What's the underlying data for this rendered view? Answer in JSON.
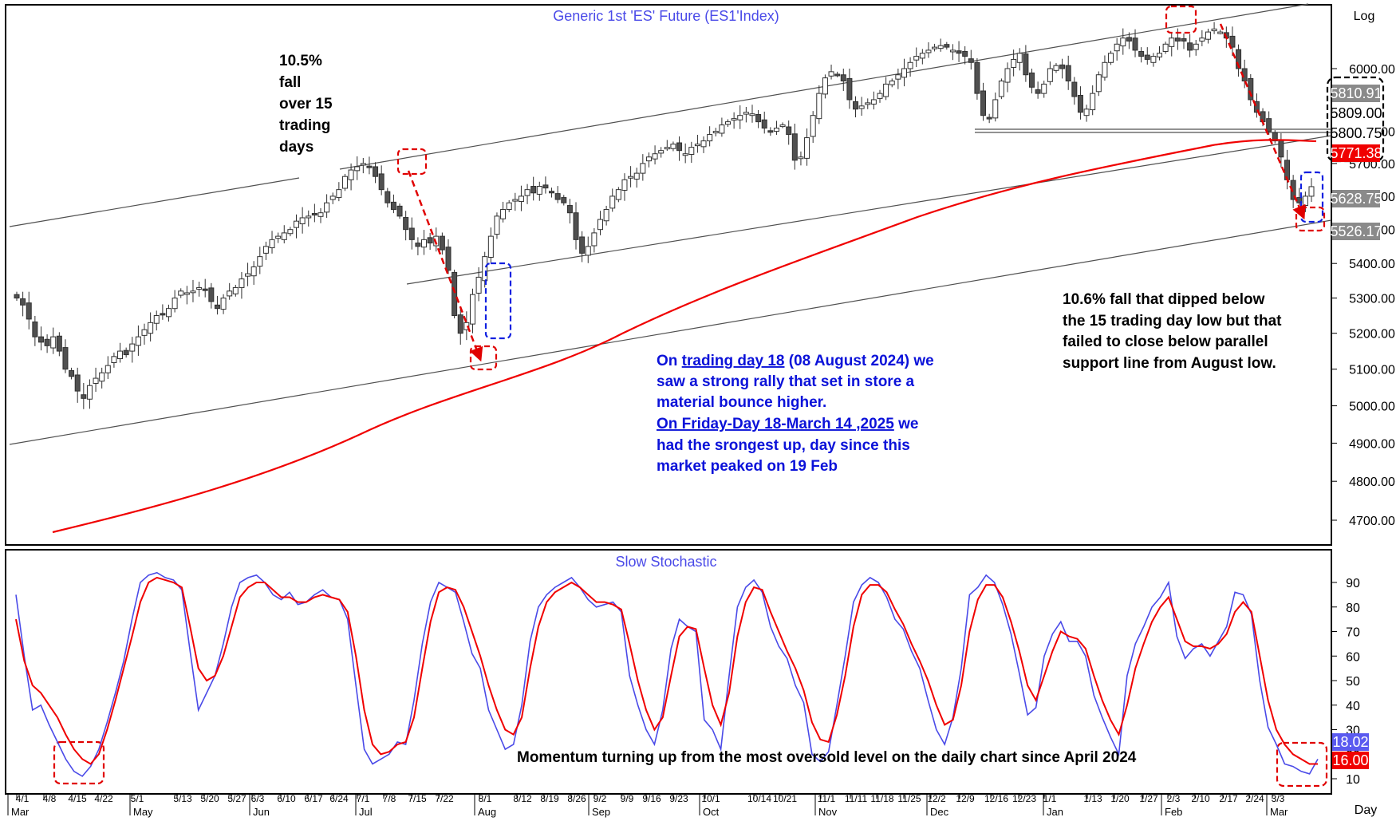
{
  "chart_data": [
    {
      "type": "candlestick",
      "title": "Generic  1st  'ES'  Future  (ES1'Index)",
      "scale_label": "Log",
      "ylim": [
        4650,
        6600
      ],
      "y_ticks": [
        4700,
        4800,
        4900,
        5000,
        5100,
        5200,
        5300,
        5400,
        5500,
        5600,
        5700,
        5800,
        6000
      ],
      "y_tick_labels": [
        "4700.00",
        "4800.00",
        "4900.00",
        "5000.00",
        "5100.00",
        "5200.00",
        "5300.00",
        "5400.00",
        "5500.00",
        "5600.00",
        "5700.00",
        "5800.00",
        "6000.00"
      ],
      "price_boxes": [
        {
          "label": "5810.91",
          "value": 5810.91,
          "style": "grey"
        },
        {
          "label": "5809.00",
          "value": 5809.0,
          "style": "white"
        },
        {
          "label": "5800.75",
          "value": 5800.75,
          "style": "white"
        },
        {
          "label": "5771.38",
          "value": 5771.38,
          "style": "red"
        },
        {
          "label": "5628.75",
          "value": 5628.75,
          "style": "grey"
        },
        {
          "label": "5526.17",
          "value": 5526.17,
          "style": "grey"
        }
      ],
      "series": [
        {
          "name": "",
          "kind": "candles",
          "closes": [
            5300,
            5280,
            5240,
            5190,
            5175,
            5165,
            5190,
            5150,
            5100,
            5080,
            5040,
            5020,
            5055,
            5075,
            5090,
            5110,
            5135,
            5150,
            5140,
            5170,
            5190,
            5210,
            5230,
            5250,
            5255,
            5270,
            5300,
            5320,
            5315,
            5320,
            5330,
            5325,
            5290,
            5270,
            5300,
            5320,
            5330,
            5355,
            5370,
            5390,
            5420,
            5450,
            5470,
            5480,
            5490,
            5500,
            5525,
            5535,
            5540,
            5545,
            5550,
            5580,
            5600,
            5620,
            5660,
            5680,
            5690,
            5700,
            5690,
            5660,
            5620,
            5580,
            5560,
            5540,
            5500,
            5470,
            5450,
            5470,
            5460,
            5480,
            5440,
            5380,
            5250,
            5200,
            5230,
            5310,
            5360,
            5420,
            5480,
            5540,
            5560,
            5580,
            5590,
            5600,
            5620,
            5610,
            5630,
            5625,
            5610,
            5590,
            5580,
            5550,
            5470,
            5430,
            5450,
            5490,
            5530,
            5560,
            5600,
            5620,
            5650,
            5660,
            5670,
            5700,
            5720,
            5730,
            5740,
            5750,
            5760,
            5740,
            5730,
            5750,
            5760,
            5770,
            5790,
            5800,
            5820,
            5830,
            5840,
            5850,
            5860,
            5855,
            5830,
            5810,
            5800,
            5810,
            5820,
            5790,
            5710,
            5720,
            5780,
            5850,
            5920,
            5970,
            5990,
            5980,
            5960,
            5900,
            5870,
            5880,
            5890,
            5900,
            5920,
            5950,
            5960,
            5980,
            6000,
            6020,
            6040,
            6050,
            6060,
            6070,
            6075,
            6070,
            6060,
            6050,
            6040,
            6020,
            5920,
            5850,
            5840,
            5900,
            5960,
            6000,
            6030,
            6050,
            5980,
            5940,
            5920,
            5950,
            6000,
            6010,
            6000,
            5960,
            5910,
            5860,
            5870,
            5920,
            5980,
            6020,
            6050,
            6080,
            6100,
            6090,
            6060,
            6040,
            6030,
            6040,
            6050,
            6080,
            6100,
            6090,
            6090,
            6060,
            6080,
            6100,
            6120,
            6130,
            6120,
            6100,
            6070,
            6000,
            5960,
            5900,
            5860,
            5830,
            5800,
            5770,
            5720,
            5650,
            5590,
            5580,
            5600,
            5629
          ]
        }
      ]
    },
    {
      "type": "line",
      "title": "Slow  Stochastic",
      "ylim": [
        0,
        100
      ],
      "y_ticks": [
        10,
        20,
        30,
        40,
        50,
        60,
        70,
        80,
        90
      ],
      "y_tick_labels": [
        "10",
        "20",
        "30",
        "40",
        "50",
        "60",
        "70",
        "80",
        "90"
      ],
      "value_boxes": [
        {
          "label": "18.02",
          "value": 18.02,
          "color": "#5a5af0"
        },
        {
          "label": "16.00",
          "value": 16.0,
          "color": "#f00000"
        }
      ],
      "series": [
        {
          "name": "",
          "color": "#4a4ae8",
          "values": [
            85,
            60,
            38,
            40,
            32,
            25,
            18,
            13,
            11,
            15,
            22,
            33,
            45,
            58,
            75,
            90,
            93,
            94,
            92,
            91,
            87,
            62,
            38,
            45,
            52,
            65,
            80,
            90,
            92,
            93,
            90,
            85,
            83,
            86,
            81,
            82,
            85,
            87,
            84,
            83,
            75,
            48,
            22,
            16,
            18,
            20,
            25,
            24,
            42,
            65,
            82,
            90,
            88,
            86,
            74,
            61,
            55,
            38,
            30,
            22,
            24,
            40,
            66,
            80,
            85,
            88,
            90,
            92,
            88,
            83,
            80,
            81,
            82,
            78,
            52,
            40,
            30,
            24,
            38,
            63,
            75,
            72,
            70,
            34,
            30,
            22,
            52,
            80,
            88,
            91,
            86,
            72,
            64,
            59,
            48,
            41,
            20,
            17,
            21,
            40,
            60,
            82,
            89,
            92,
            90,
            84,
            75,
            71,
            62,
            55,
            42,
            30,
            24,
            35,
            55,
            85,
            88,
            93,
            90,
            81,
            69,
            53,
            36,
            39,
            60,
            69,
            74,
            66,
            66,
            60,
            44,
            35,
            27,
            20,
            52,
            65,
            72,
            80,
            84,
            90,
            68,
            59,
            63,
            65,
            60,
            66,
            72,
            86,
            85,
            77,
            50,
            31,
            24,
            16,
            15,
            13,
            12,
            18
          ]
        },
        {
          "name": "",
          "color": "#f00000",
          "values": [
            75,
            58,
            48,
            45,
            40,
            35,
            28,
            22,
            18,
            16,
            20,
            30,
            42,
            55,
            68,
            82,
            90,
            92,
            91,
            90,
            88,
            72,
            55,
            50,
            52,
            60,
            72,
            84,
            88,
            90,
            90,
            87,
            84,
            84,
            82,
            82,
            84,
            85,
            84,
            83,
            78,
            60,
            38,
            24,
            20,
            21,
            24,
            25,
            35,
            55,
            74,
            86,
            88,
            87,
            80,
            70,
            60,
            48,
            38,
            30,
            28,
            35,
            55,
            72,
            82,
            86,
            88,
            90,
            88,
            85,
            82,
            82,
            81,
            79,
            65,
            50,
            38,
            30,
            35,
            52,
            68,
            72,
            71,
            55,
            40,
            32,
            45,
            68,
            82,
            88,
            87,
            78,
            70,
            62,
            55,
            46,
            33,
            26,
            25,
            36,
            52,
            72,
            85,
            89,
            89,
            86,
            79,
            73,
            65,
            58,
            50,
            40,
            32,
            34,
            48,
            70,
            83,
            89,
            89,
            84,
            74,
            62,
            48,
            42,
            52,
            62,
            70,
            68,
            67,
            63,
            52,
            42,
            34,
            28,
            40,
            55,
            65,
            74,
            80,
            84,
            75,
            66,
            64,
            64,
            63,
            65,
            69,
            78,
            82,
            78,
            60,
            42,
            30,
            24,
            20,
            18,
            16,
            16
          ]
        }
      ]
    }
  ],
  "x_axis": {
    "date_labels": [
      "4/1",
      "4/8",
      "4/15",
      "4/22",
      "5/1",
      "5/13",
      "5/20",
      "5/27",
      "6/3",
      "6/10",
      "6/17",
      "6/24",
      "7/1",
      "7/8",
      "7/15",
      "7/22",
      "8/1",
      "8/12",
      "8/19",
      "8/26",
      "9/2",
      "9/9",
      "9/16",
      "9/23",
      "10/1",
      "10/14",
      "10/21",
      "11/1",
      "11/11",
      "11/18",
      "11/25",
      "12/2",
      "12/9",
      "12/16",
      "12/23",
      "1/1",
      "1/13",
      "1/20",
      "1/27",
      "2/3",
      "2/10",
      "2/17",
      "2/24",
      "3/3"
    ],
    "month_labels": [
      "Mar",
      "May",
      "Jun",
      "Jul",
      "Aug",
      "Sep",
      "Oct",
      "Nov",
      "Dec",
      "Jan",
      "Feb",
      "Mar"
    ],
    "day_label": "Day"
  },
  "annotations": {
    "fall_note": [
      "10.5%",
      "fall",
      "over 15",
      "trading",
      "days"
    ],
    "august_note": {
      "line1_prefix": "On ",
      "line1_link": "trading day 18",
      "line1_suffix": " (08 August 2024) we",
      "line2": "saw a strong rally that set in store a",
      "line3": "material bounce higher.",
      "line4_link": "On Friday-Day 18-March 14 ,2025",
      "line4_suffix": " we",
      "line5": "had the srongest up, day since this",
      "line6": "market peaked on 19 Feb"
    },
    "feb_note": [
      "10.6% fall that dipped below",
      "the 15 trading day low but  that",
      "failed to close below parallel",
      "support line from August low."
    ],
    "momentum_note": "Momentum turning up from the most oversold level on the daily chart since April 2024"
  },
  "colors": {
    "candle_up": "#ffffff",
    "candle_down": "#505050",
    "moving_average": "#f00000",
    "trendline": "#505050",
    "highlight_red": "#e00000",
    "highlight_blue": "#1020e0",
    "title": "#4a4ae8"
  }
}
